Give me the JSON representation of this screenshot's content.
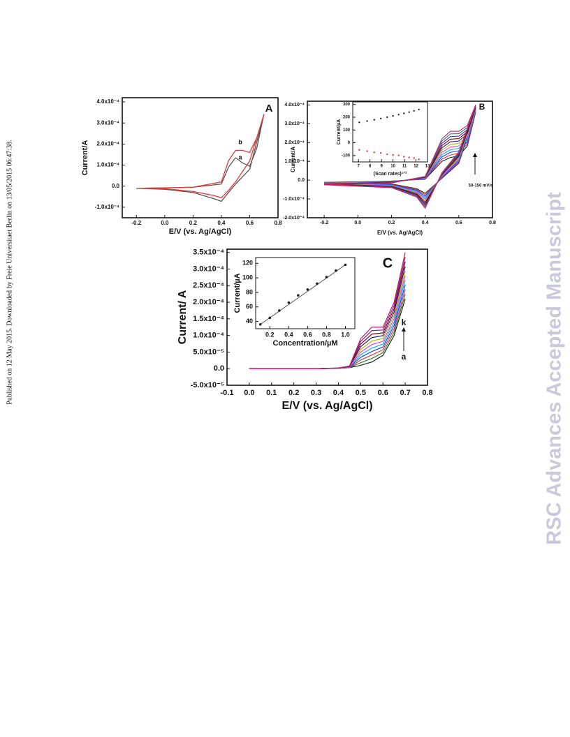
{
  "sidebar": "Published on 12 May 2015. Downloaded by Freie Universitaet Berlin on 13/05/2015 06:47:38.",
  "watermark": "RSC Advances Accepted Manuscript",
  "chart_data": [
    {
      "type": "line",
      "label": "A",
      "xlabel": "E/V (vs. Ag/AgCl)",
      "ylabel": "Current/A",
      "annotations": [
        "a",
        "b"
      ],
      "xlim": [
        -0.3,
        0.8
      ],
      "xticks": [
        -0.2,
        {
          "value": 0,
          "label": "0.0"
        },
        0.2,
        0.4,
        0.6,
        0.8
      ],
      "ylim": [
        -0.00015,
        0.00042
      ],
      "yticks": [
        {
          "value": -0.0001,
          "label": "-1.0x10⁻⁴"
        },
        {
          "value": 0,
          "label": "0.0"
        },
        {
          "value": 0.0001,
          "label": "1.0x10⁻⁴"
        },
        {
          "value": 0.0002,
          "label": "2.0x10⁻⁴"
        },
        {
          "value": 0.0003,
          "label": "3.0x10⁻⁴"
        },
        {
          "value": 0.0004,
          "label": "4.0x10⁻⁴"
        }
      ],
      "x": [
        -0.2,
        0,
        0.2,
        0.4,
        0.45,
        0.5,
        0.55,
        0.6,
        0.65,
        0.7,
        0.6,
        0.5,
        0.45,
        0.4,
        0.35,
        0.2,
        0,
        -0.2
      ],
      "series": [
        {
          "color": "#555555",
          "values": [
            -1e-05,
            -8e-06,
            -5e-06,
            1e-05,
            9e-05,
            0.000135,
            0.00011,
            9.5e-05,
            0.00018,
            0.00034,
            8e-05,
            1e-05,
            -3e-05,
            -7.2e-05,
            -6e-05,
            -3e-05,
            -1.5e-05,
            -1e-05
          ]
        },
        {
          "color": "#e53935",
          "values": [
            -1e-05,
            -8e-06,
            -5e-06,
            2e-05,
            0.00012,
            0.00017,
            0.00017,
            0.00016,
            0.00023,
            0.00034,
            0.00012,
            2e-05,
            -2e-05,
            -5.5e-05,
            -4.5e-05,
            -2.5e-05,
            -1.2e-05,
            -1e-05
          ]
        }
      ]
    },
    {
      "type": "line",
      "label": "B",
      "xlabel": "E/V (vs. Ag/AgCl)",
      "ylabel": "Current/A",
      "annotations": [
        "50-150 mV/s"
      ],
      "xlim": [
        -0.3,
        0.8
      ],
      "xticks": [
        -0.2,
        {
          "value": 0,
          "label": "0.0"
        },
        0.2,
        0.4,
        0.6,
        0.8
      ],
      "ylim": [
        -0.0002,
        0.00042
      ],
      "yticks": [
        {
          "value": -0.0002,
          "label": "-2.0x10⁻⁴"
        },
        {
          "value": -0.0001,
          "label": "-1.0x10⁻⁴"
        },
        {
          "value": 0,
          "label": "0.0"
        },
        {
          "value": 0.0001,
          "label": "1.0x10⁻⁴"
        },
        {
          "value": 0.0002,
          "label": "2.0x10⁻⁴"
        },
        {
          "value": 0.0003,
          "label": "3.0x10⁻⁴"
        },
        {
          "value": 0.0004,
          "label": "4.0x10⁻⁴"
        }
      ],
      "x": [
        -0.2,
        0.2,
        0.4,
        0.5,
        0.55,
        0.6,
        0.65,
        0.7,
        0.6,
        0.5,
        0.4,
        0.35,
        0.2,
        -0.2
      ],
      "series": [
        {
          "color": "#222222",
          "values": [
            -1.2e-05,
            -5e-06,
            5e-06,
            0.0001,
            0.00012,
            0.00013,
            0.00018,
            0.00036,
            9e-05,
            1e-05,
            -7e-05,
            -4.5e-05,
            -2e-05,
            -1.2e-05
          ]
        },
        {
          "color": "#e53935",
          "values": [
            -1.3e-05,
            -6e-06,
            7e-06,
            0.000112,
            0.000134,
            0.000143,
            0.000191,
            0.000364,
            9.6e-05,
            1.3e-05,
            -7.8e-05,
            -5e-05,
            -2.2e-05,
            -1.3e-05
          ]
        },
        {
          "color": "#1e3cff",
          "values": [
            -1.5e-05,
            -7e-06,
            8e-06,
            0.000124,
            0.000148,
            0.000156,
            0.000202,
            0.000368,
            0.000102,
            1.6e-05,
            -8.6e-05,
            -5.4e-05,
            -2.4e-05,
            -1.5e-05
          ]
        },
        {
          "color": "#00b8d4",
          "values": [
            -1.6e-05,
            -8e-06,
            1e-05,
            0.000136,
            0.000162,
            0.000169,
            0.000213,
            0.000372,
            0.000108,
            1.9e-05,
            -9.4e-05,
            -5.9e-05,
            -2.6e-05,
            -1.6e-05
          ]
        },
        {
          "color": "#e040fb",
          "values": [
            -1.7e-05,
            -9e-06,
            1.1e-05,
            0.000148,
            0.000176,
            0.000182,
            0.000224,
            0.000376,
            0.000114,
            2.2e-05,
            -0.000102,
            -6.3e-05,
            -2.8e-05,
            -1.7e-05
          ]
        },
        {
          "color": "#c0b000",
          "values": [
            -1.9e-05,
            -1e-05,
            1.3e-05,
            0.00016,
            0.00019,
            0.000195,
            0.000235,
            0.00038,
            0.00012,
            2.5e-05,
            -0.00011,
            -6.8e-05,
            -3e-05,
            -1.9e-05
          ]
        },
        {
          "color": "#1a237e",
          "values": [
            -2e-05,
            -1.1e-05,
            1.4e-05,
            0.000172,
            0.000204,
            0.000208,
            0.000246,
            0.000384,
            0.000126,
            2.8e-05,
            -0.000118,
            -7.2e-05,
            -3.2e-05,
            -2e-05
          ]
        },
        {
          "color": "#8b0000",
          "values": [
            -2.1e-05,
            -1.2e-05,
            1.6e-05,
            0.000184,
            0.000218,
            0.000221,
            0.000257,
            0.000388,
            0.000132,
            3.1e-05,
            -0.000126,
            -7.7e-05,
            -3.4e-05,
            -2.1e-05
          ]
        },
        {
          "color": "#7b1fa2",
          "values": [
            -2.2e-05,
            -1.3e-05,
            1.7e-05,
            0.000196,
            0.000232,
            0.000234,
            0.000268,
            0.000392,
            0.000138,
            3.4e-05,
            -0.000134,
            -8.1e-05,
            -3.6e-05,
            -2.2e-05
          ]
        },
        {
          "color": "#00897b",
          "values": [
            -2.4e-05,
            -1.4e-05,
            1.9e-05,
            0.000208,
            0.000246,
            0.000247,
            0.000279,
            0.000396,
            0.000144,
            3.7e-05,
            -0.000142,
            -8.6e-05,
            -3.8e-05,
            -2.4e-05
          ]
        },
        {
          "color": "#d81b60",
          "values": [
            -2.5e-05,
            -1.5e-05,
            2e-05,
            0.00022,
            0.00026,
            0.00026,
            0.00029,
            0.0004,
            0.00015,
            4e-05,
            -0.00015,
            -9e-05,
            -4e-05,
            -2.5e-05
          ]
        }
      ]
    },
    {
      "type": "scatter",
      "xlabel": "(Scan rates)¹ᐟ²",
      "ylabel": "Current/µA",
      "xlim": [
        6.5,
        13
      ],
      "xticks": [
        7,
        8,
        9,
        10,
        11,
        12,
        13
      ],
      "ylim": [
        -150,
        320
      ],
      "yticks": [
        -100,
        0,
        100,
        200,
        300
      ],
      "x": [
        7.07,
        7.75,
        8.37,
        8.94,
        9.49,
        10,
        10.49,
        10.95,
        11.4,
        11.83,
        12.25
      ],
      "series": [
        {
          "color": "#222222",
          "values": [
            160,
            170,
            180,
            190,
            200,
            210,
            220,
            230,
            240,
            250,
            260
          ]
        },
        {
          "color": "#e53935",
          "values": [
            -55,
            -65,
            -75,
            -80,
            -90,
            -95,
            -100,
            -110,
            -115,
            -120,
            -130
          ]
        }
      ]
    },
    {
      "type": "line",
      "label": "C",
      "xlabel": "E/V (vs. Ag/AgCl)",
      "ylabel": "Current/ A",
      "annotations": [
        "k",
        "a"
      ],
      "xlim": [
        -0.1,
        0.8
      ],
      "xticks": [
        -0.1,
        {
          "value": 0,
          "label": "0.0"
        },
        0.1,
        0.2,
        0.3,
        0.4,
        0.5,
        0.6,
        0.7,
        0.8
      ],
      "ylim": [
        -5e-05,
        0.00036
      ],
      "yticks": [
        {
          "value": -5e-05,
          "label": "-5.0x10⁻⁵"
        },
        {
          "value": 0,
          "label": "0.0"
        },
        {
          "value": 5e-05,
          "label": "5.0x10⁻⁵"
        },
        {
          "value": 0.0001,
          "label": "1.0x10⁻⁴"
        },
        {
          "value": 0.00015,
          "label": "1.5x10⁻⁴"
        },
        {
          "value": 0.0002,
          "label": "2.0x10⁻⁴"
        },
        {
          "value": 0.00025,
          "label": "2.5x10⁻⁴"
        },
        {
          "value": 0.0003,
          "label": "3.0x10⁻⁴"
        },
        {
          "value": 0.00035,
          "label": "3.5x10⁻⁴"
        }
      ],
      "x": [
        0,
        0.1,
        0.2,
        0.3,
        0.4,
        0.45,
        0.5,
        0.55,
        0.6,
        0.65,
        0.7
      ],
      "series": [
        {
          "color": "#222222",
          "values": [
            0,
            0,
            0,
            0,
            1e-06,
            3e-06,
            1e-05,
            2e-05,
            4e-05,
            0.0001,
            0.00021
          ]
        },
        {
          "color": "#2e7d32",
          "values": [
            0,
            0,
            0,
            0,
            1.1e-06,
            3.5e-06,
            1.8e-05,
            3.05e-05,
            4.85e-05,
            0.00011,
            0.000224
          ]
        },
        {
          "color": "#e53935",
          "values": [
            0,
            0,
            0,
            0,
            1.2e-06,
            4e-06,
            2.6e-05,
            4.1e-05,
            5.7e-05,
            0.00012,
            0.000238
          ]
        },
        {
          "color": "#1e3cff",
          "values": [
            0,
            0,
            0,
            0,
            1.3e-06,
            4.5e-06,
            3.4e-05,
            5.15e-05,
            6.55e-05,
            0.00013,
            0.000252
          ]
        },
        {
          "color": "#00b8d4",
          "values": [
            0,
            0,
            0,
            0,
            1.4e-06,
            5e-06,
            4.2e-05,
            6.2e-05,
            7.4e-05,
            0.00014,
            0.000266
          ]
        },
        {
          "color": "#e040fb",
          "values": [
            0,
            0,
            0,
            0,
            1.5e-06,
            5.5e-06,
            5e-05,
            7.25e-05,
            8.25e-05,
            0.00015,
            0.00028
          ]
        },
        {
          "color": "#c0b000",
          "values": [
            0,
            0,
            0,
            0,
            1.6e-06,
            6e-06,
            5.8e-05,
            8.3e-05,
            9.1e-05,
            0.00016,
            0.000294
          ]
        },
        {
          "color": "#1a237e",
          "values": [
            0,
            0,
            0,
            0,
            1.7e-06,
            6.5e-06,
            6.6e-05,
            9.35e-05,
            9.95e-05,
            0.00017,
            0.000308
          ]
        },
        {
          "color": "#8b0000",
          "values": [
            0,
            0,
            0,
            0,
            1.8e-06,
            7e-06,
            7.4e-05,
            0.000104,
            0.000108,
            0.00018,
            0.000322
          ]
        },
        {
          "color": "#7b1fa2",
          "values": [
            0,
            0,
            0,
            0,
            1.9e-06,
            7.5e-06,
            8.2e-05,
            0.0001145,
            0.0001165,
            0.00019,
            0.000336
          ]
        },
        {
          "color": "#c2185b",
          "values": [
            0,
            0,
            0,
            0,
            2e-06,
            8e-06,
            9e-05,
            0.000125,
            0.000125,
            0.0002,
            0.00035
          ]
        }
      ]
    },
    {
      "type": "scatter",
      "xlabel": "Concentration/µM",
      "ylabel": "Current/µA",
      "xlim": [
        0.05,
        1.1
      ],
      "xticks": [
        0.2,
        0.4,
        0.6,
        0.8,
        {
          "value": 1,
          "label": "1.0"
        }
      ],
      "ylim": [
        30,
        128
      ],
      "yticks": [
        40,
        60,
        80,
        100,
        120
      ],
      "x": [
        0.1,
        0.2,
        0.3,
        0.4,
        0.5,
        0.6,
        0.7,
        0.8,
        0.9,
        1.0
      ],
      "series": [
        {
          "color": "#222222",
          "values": [
            36,
            45,
            55,
            66,
            76,
            84,
            92,
            101,
            110,
            118
          ]
        }
      ],
      "fit_line": true
    }
  ]
}
